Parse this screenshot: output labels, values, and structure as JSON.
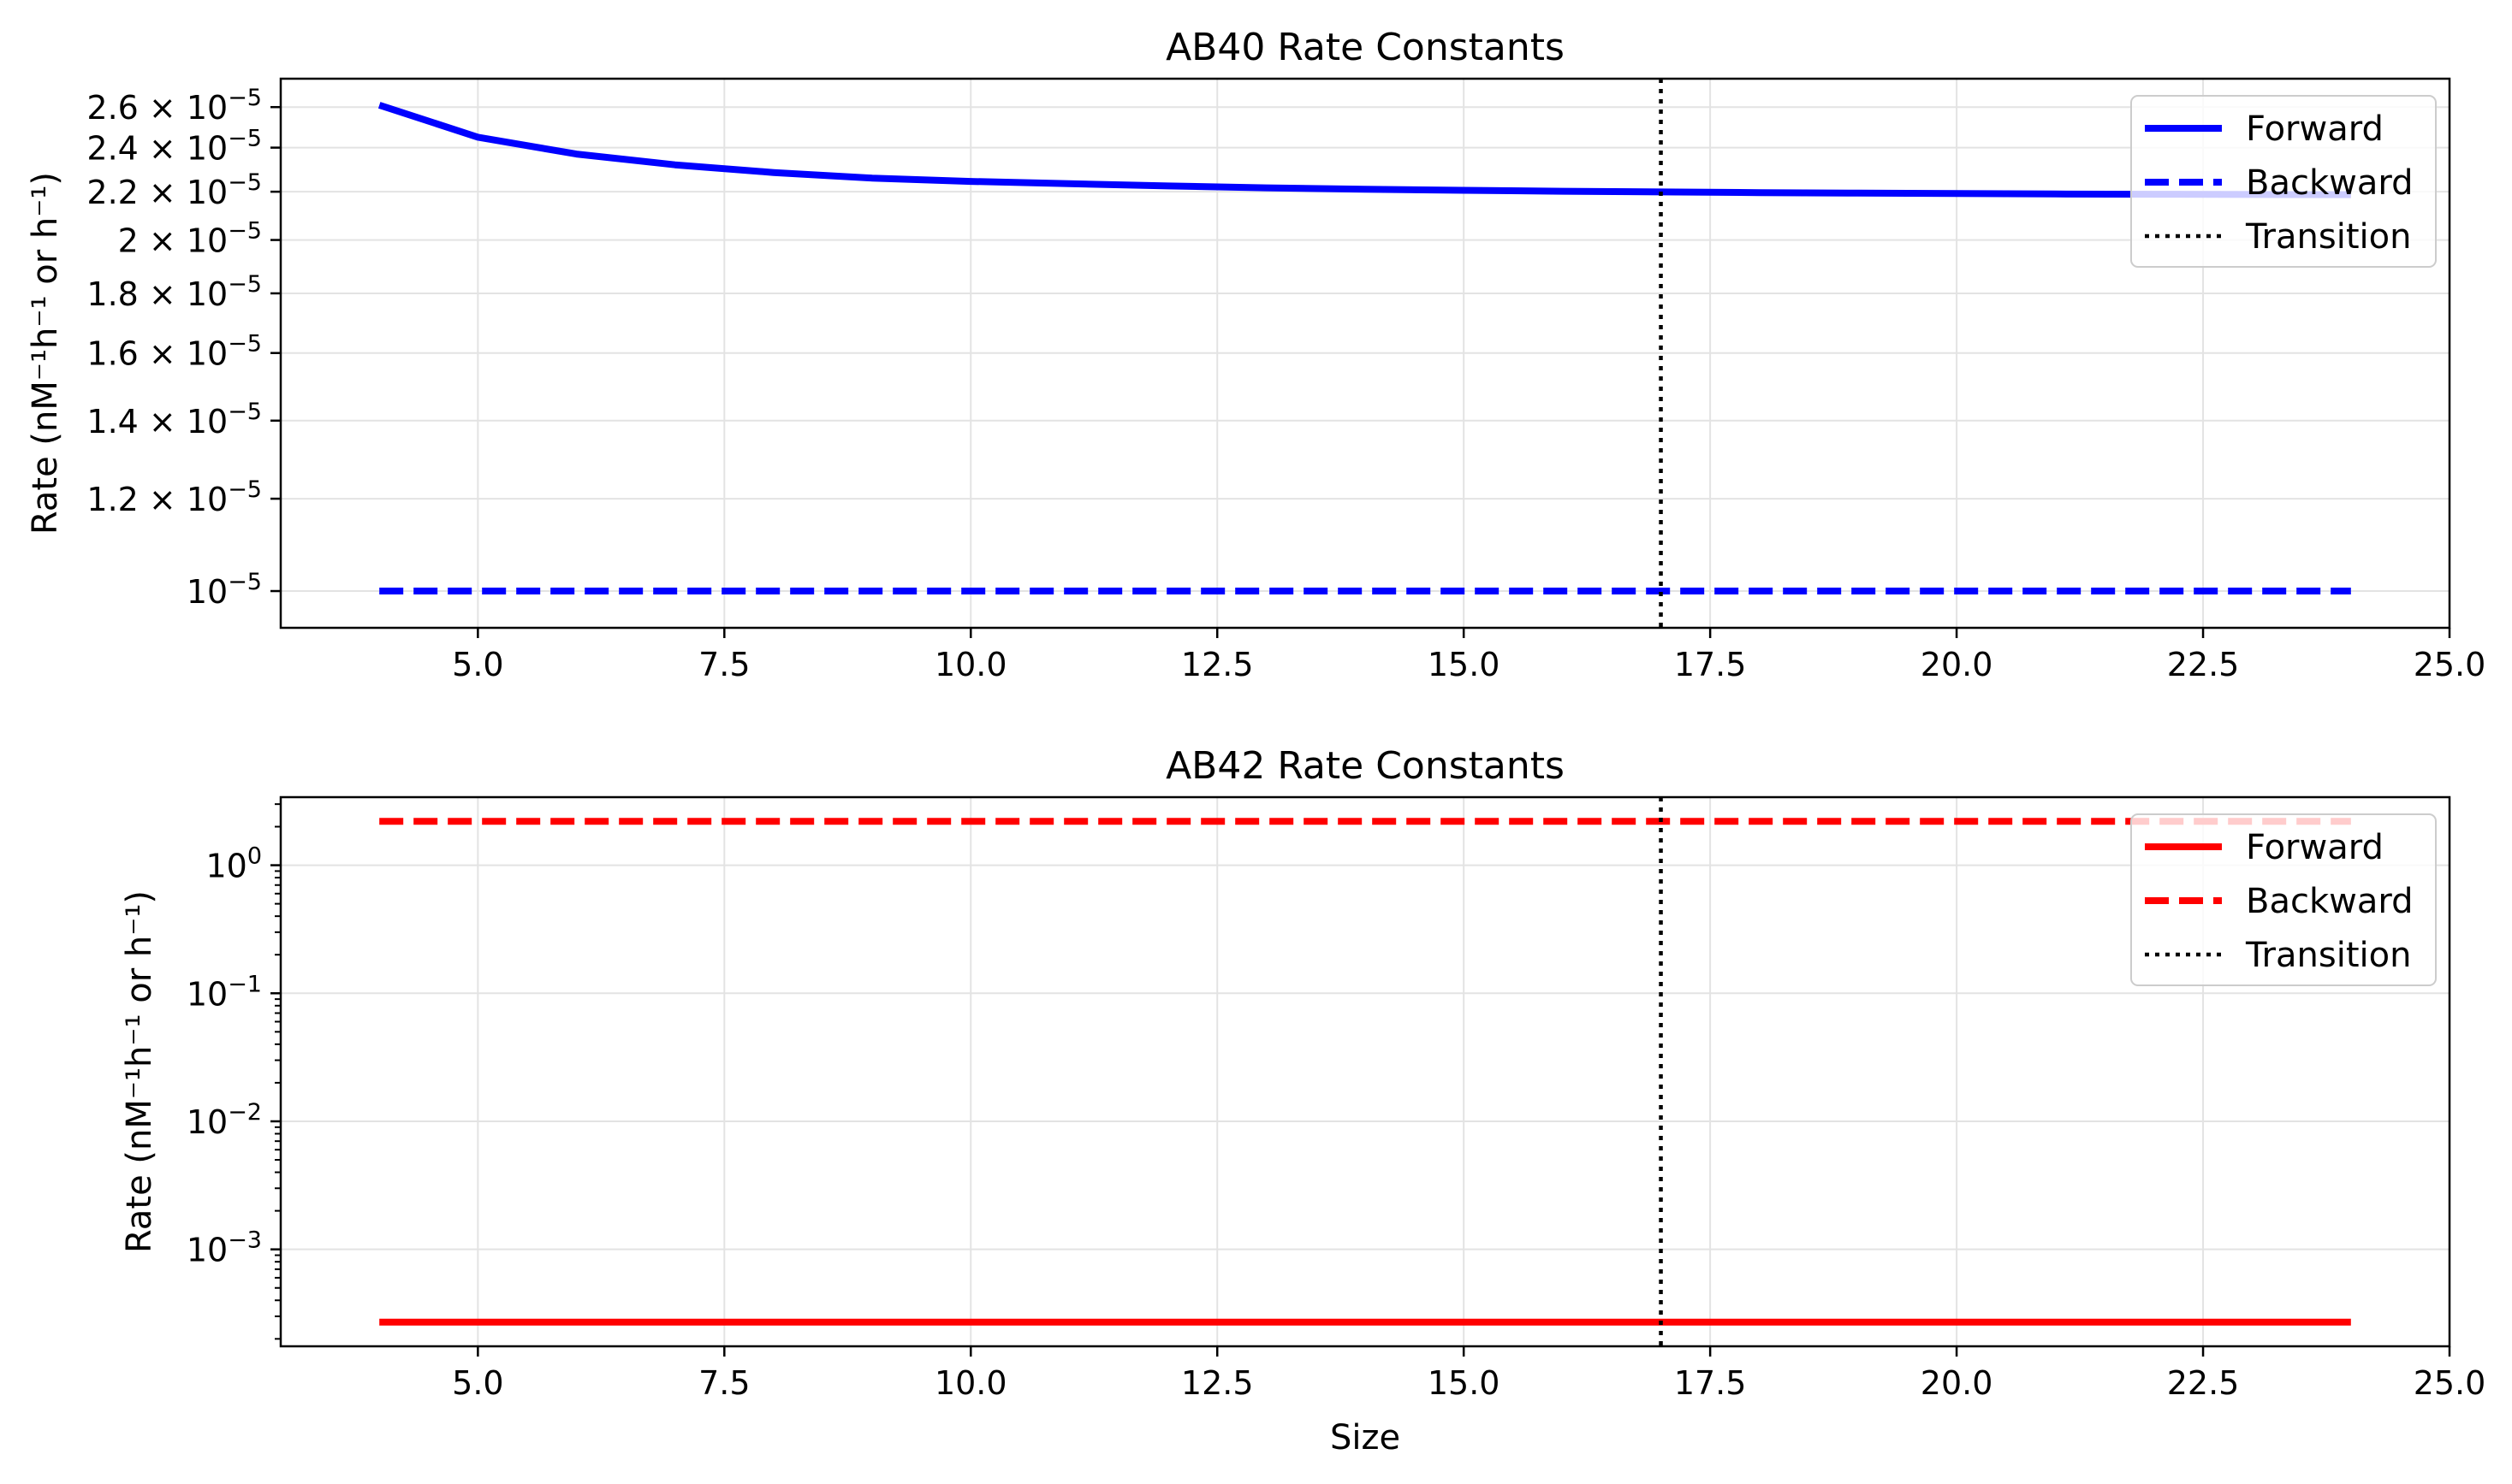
{
  "chart_data": [
    {
      "type": "line",
      "title": "AB40 Rate Constants",
      "xlabel": "",
      "ylabel": "Rate (nM⁻¹h⁻¹ or h⁻¹)",
      "yscale": "log",
      "xlim": [
        3.0,
        25.0
      ],
      "ylim": [
        9.3e-06,
        2.75e-05
      ],
      "x_ticks": [
        5.0,
        7.5,
        10.0,
        12.5,
        15.0,
        17.5,
        20.0,
        22.5,
        25.0
      ],
      "x_tick_labels": [
        "5.0",
        "7.5",
        "10.0",
        "12.5",
        "15.0",
        "17.5",
        "20.0",
        "22.5",
        "25.0"
      ],
      "y_ticks": [
        {
          "value": 1e-05,
          "mantissa": "",
          "exp": "−5"
        },
        {
          "value": 1.2e-05,
          "mantissa": "1.2",
          "exp": "−5"
        },
        {
          "value": 1.4e-05,
          "mantissa": "1.4",
          "exp": "−5"
        },
        {
          "value": 1.6e-05,
          "mantissa": "1.6",
          "exp": "−5"
        },
        {
          "value": 1.8e-05,
          "mantissa": "1.8",
          "exp": "−5"
        },
        {
          "value": 2e-05,
          "mantissa": "2",
          "exp": "−5"
        },
        {
          "value": 2.2e-05,
          "mantissa": "2.2",
          "exp": "−5"
        },
        {
          "value": 2.4e-05,
          "mantissa": "2.4",
          "exp": "−5"
        },
        {
          "value": 2.6e-05,
          "mantissa": "2.6",
          "exp": "−5"
        }
      ],
      "minor_ticks": [],
      "grid": true,
      "legend_position": "upper right",
      "transition_x": 17,
      "series": [
        {
          "name": "Forward",
          "color": "#0000ff",
          "dash": "solid",
          "x": [
            4,
            5,
            6,
            7,
            8,
            9,
            10,
            11,
            12,
            13,
            14,
            15,
            16,
            17,
            18,
            19,
            20,
            21,
            22,
            23,
            24
          ],
          "y": [
            2.61e-05,
            2.45e-05,
            2.37e-05,
            2.32e-05,
            2.285e-05,
            2.26e-05,
            2.245e-05,
            2.235e-05,
            2.225e-05,
            2.217e-05,
            2.211e-05,
            2.206e-05,
            2.202e-05,
            2.199e-05,
            2.196e-05,
            2.194e-05,
            2.192e-05,
            2.19e-05,
            2.189e-05,
            2.188e-05,
            2.187e-05
          ]
        },
        {
          "name": "Backward",
          "color": "#0000ff",
          "dash": "dashed",
          "x": [
            4,
            24
          ],
          "y": [
            1e-05,
            1e-05
          ]
        },
        {
          "name": "Transition",
          "color": "#000000",
          "dash": "dotted"
        }
      ]
    },
    {
      "type": "line",
      "title": "AB42 Rate Constants",
      "xlabel": "Size",
      "ylabel": "Rate (nM⁻¹h⁻¹ or h⁻¹)",
      "yscale": "log",
      "xlim": [
        3.0,
        25.0
      ],
      "ylim": [
        0.000175,
        3.4
      ],
      "x_ticks": [
        5.0,
        7.5,
        10.0,
        12.5,
        15.0,
        17.5,
        20.0,
        22.5,
        25.0
      ],
      "x_tick_labels": [
        "5.0",
        "7.5",
        "10.0",
        "12.5",
        "15.0",
        "17.5",
        "20.0",
        "22.5",
        "25.0"
      ],
      "y_ticks": [
        {
          "value": 0.001,
          "mantissa": "",
          "exp": "−3"
        },
        {
          "value": 0.01,
          "mantissa": "",
          "exp": "−2"
        },
        {
          "value": 0.1,
          "mantissa": "",
          "exp": "−1"
        },
        {
          "value": 1,
          "mantissa": "",
          "exp": "0"
        }
      ],
      "minor_ticks": [
        0.0002,
        0.0003,
        0.0004,
        0.0005,
        0.0006,
        0.0007,
        0.0008,
        0.0009,
        0.002,
        0.003,
        0.004,
        0.005,
        0.006,
        0.007,
        0.008,
        0.009,
        0.02,
        0.03,
        0.04,
        0.05,
        0.06,
        0.07,
        0.08,
        0.09,
        0.2,
        0.3,
        0.4,
        0.5,
        0.6,
        0.7,
        0.8,
        0.9,
        2,
        3
      ],
      "grid": true,
      "legend_position": "upper right",
      "transition_x": 17,
      "series": [
        {
          "name": "Forward",
          "color": "#ff0000",
          "dash": "solid",
          "x": [
            4,
            24
          ],
          "y": [
            0.00027,
            0.00027
          ]
        },
        {
          "name": "Backward",
          "color": "#ff0000",
          "dash": "dashed",
          "x": [
            4,
            24
          ],
          "y": [
            2.2,
            2.2
          ]
        },
        {
          "name": "Transition",
          "color": "#000000",
          "dash": "dotted"
        }
      ]
    }
  ]
}
